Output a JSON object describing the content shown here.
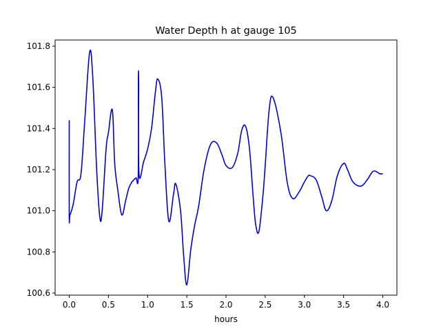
{
  "chart_data": {
    "type": "line",
    "title": "Water Depth h at gauge 105",
    "xlabel": "hours",
    "ylabel": "",
    "xlim": [
      -0.18,
      4.18
    ],
    "ylim": [
      100.59,
      101.83
    ],
    "xticks": [
      0.0,
      0.5,
      1.0,
      1.5,
      2.0,
      2.5,
      3.0,
      3.5,
      4.0
    ],
    "xtick_labels": [
      "0.0",
      "0.5",
      "1.0",
      "1.5",
      "2.0",
      "2.5",
      "3.0",
      "3.5",
      "4.0"
    ],
    "yticks": [
      100.6,
      100.8,
      101.0,
      101.2,
      101.4,
      101.6,
      101.8
    ],
    "ytick_labels": [
      "100.6",
      "100.8",
      "101.0",
      "101.2",
      "101.4",
      "101.6",
      "101.8"
    ],
    "grid": false,
    "series": [
      {
        "color": "#0000cc",
        "x": [
          0.0,
          0.0,
          0.01,
          0.05,
          0.1,
          0.15,
          0.2,
          0.26,
          0.3,
          0.35,
          0.39,
          0.42,
          0.47,
          0.5,
          0.55,
          0.58,
          0.62,
          0.67,
          0.72,
          0.76,
          0.8,
          0.85,
          0.88,
          0.882,
          0.886,
          0.89,
          0.95,
          1.0,
          1.05,
          1.1,
          1.13,
          1.18,
          1.22,
          1.27,
          1.33,
          1.36,
          1.42,
          1.46,
          1.5,
          1.55,
          1.6,
          1.65,
          1.72,
          1.8,
          1.88,
          1.95,
          2.0,
          2.08,
          2.15,
          2.2,
          2.25,
          2.3,
          2.35,
          2.38,
          2.42,
          2.47,
          2.5,
          2.55,
          2.6,
          2.7,
          2.78,
          2.85,
          2.93,
          3.0,
          3.05,
          3.08,
          3.15,
          3.22,
          3.28,
          3.35,
          3.42,
          3.5,
          3.55,
          3.62,
          3.72,
          3.8,
          3.87,
          3.92,
          3.96,
          4.0
        ],
        "y": [
          101.44,
          100.98,
          100.98,
          101.03,
          101.14,
          101.18,
          101.45,
          101.77,
          101.65,
          101.2,
          100.97,
          101.0,
          101.3,
          101.38,
          101.49,
          101.23,
          101.1,
          100.98,
          101.05,
          101.11,
          101.14,
          101.16,
          101.17,
          101.62,
          101.62,
          101.18,
          101.24,
          101.3,
          101.4,
          101.58,
          101.64,
          101.55,
          101.23,
          100.95,
          101.08,
          101.13,
          101.0,
          100.78,
          100.64,
          100.81,
          100.93,
          101.02,
          101.2,
          101.32,
          101.33,
          101.27,
          101.22,
          101.21,
          101.28,
          101.39,
          101.41,
          101.3,
          101.05,
          100.93,
          100.9,
          101.07,
          101.22,
          101.49,
          101.55,
          101.38,
          101.14,
          101.06,
          101.09,
          101.14,
          101.17,
          101.17,
          101.15,
          101.07,
          101.0,
          101.05,
          101.17,
          101.23,
          101.2,
          101.14,
          101.12,
          101.15,
          101.19,
          101.19,
          101.18,
          101.18
        ]
      }
    ]
  }
}
